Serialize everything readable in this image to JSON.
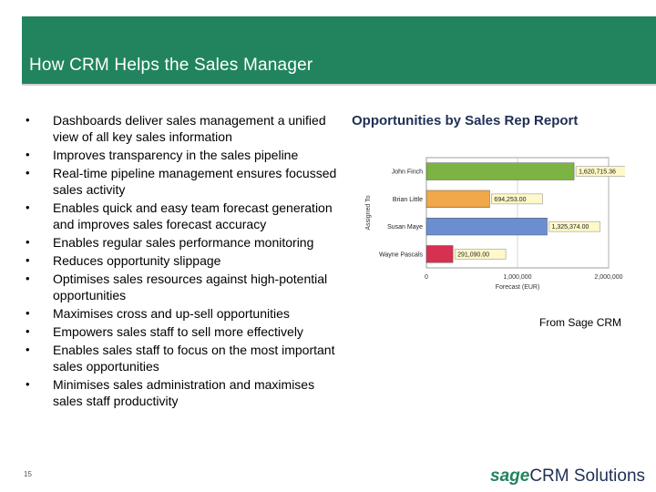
{
  "slide": {
    "title": "How CRM Helps the Sales Manager",
    "bullets": [
      "Dashboards deliver sales management a unified view of all key sales information",
      "Improves transparency in the sales pipeline",
      "Real-time pipeline management ensures focussed sales activity",
      "Enables quick and easy team forecast generation and improves sales forecast accuracy",
      "Enables regular sales performance monitoring",
      "Reduces opportunity slippage",
      "Optimises sales resources against high-potential opportunities",
      "Maximises cross and up-sell opportunities",
      "Empowers sales staff to sell more effectively",
      "Enables sales staff to focus on the most important sales opportunities",
      "Minimises sales administration and maximises sales staff productivity"
    ],
    "bullet_glyph": "•",
    "caption": "From Sage CRM",
    "page_number": "15",
    "logo": {
      "brand": "sage",
      "product": "CRM Solutions"
    }
  },
  "chart_data": {
    "type": "bar",
    "orientation": "horizontal",
    "title": "Opportunities by Sales Rep Report",
    "xlabel": "Forecast (EUR)",
    "ylabel": "Assigned To",
    "categories": [
      "John Finch",
      "Brian Little",
      "Susan Maye",
      "Wayne Pascals"
    ],
    "values": [
      1620715.36,
      694253.0,
      1325374.0,
      291090.0
    ],
    "value_labels": [
      "1,620,715.36",
      "694,253.00",
      "1,325,374.00",
      "291,090.00"
    ],
    "bar_colors": [
      "#7cb342",
      "#f0a84a",
      "#6a8fd0",
      "#d83050"
    ],
    "xlim": [
      0,
      2000000
    ],
    "x_ticks": [
      0,
      1000000,
      2000000
    ],
    "x_tick_labels": [
      "0",
      "1,000,000",
      "2,000,000"
    ],
    "grid": true
  }
}
